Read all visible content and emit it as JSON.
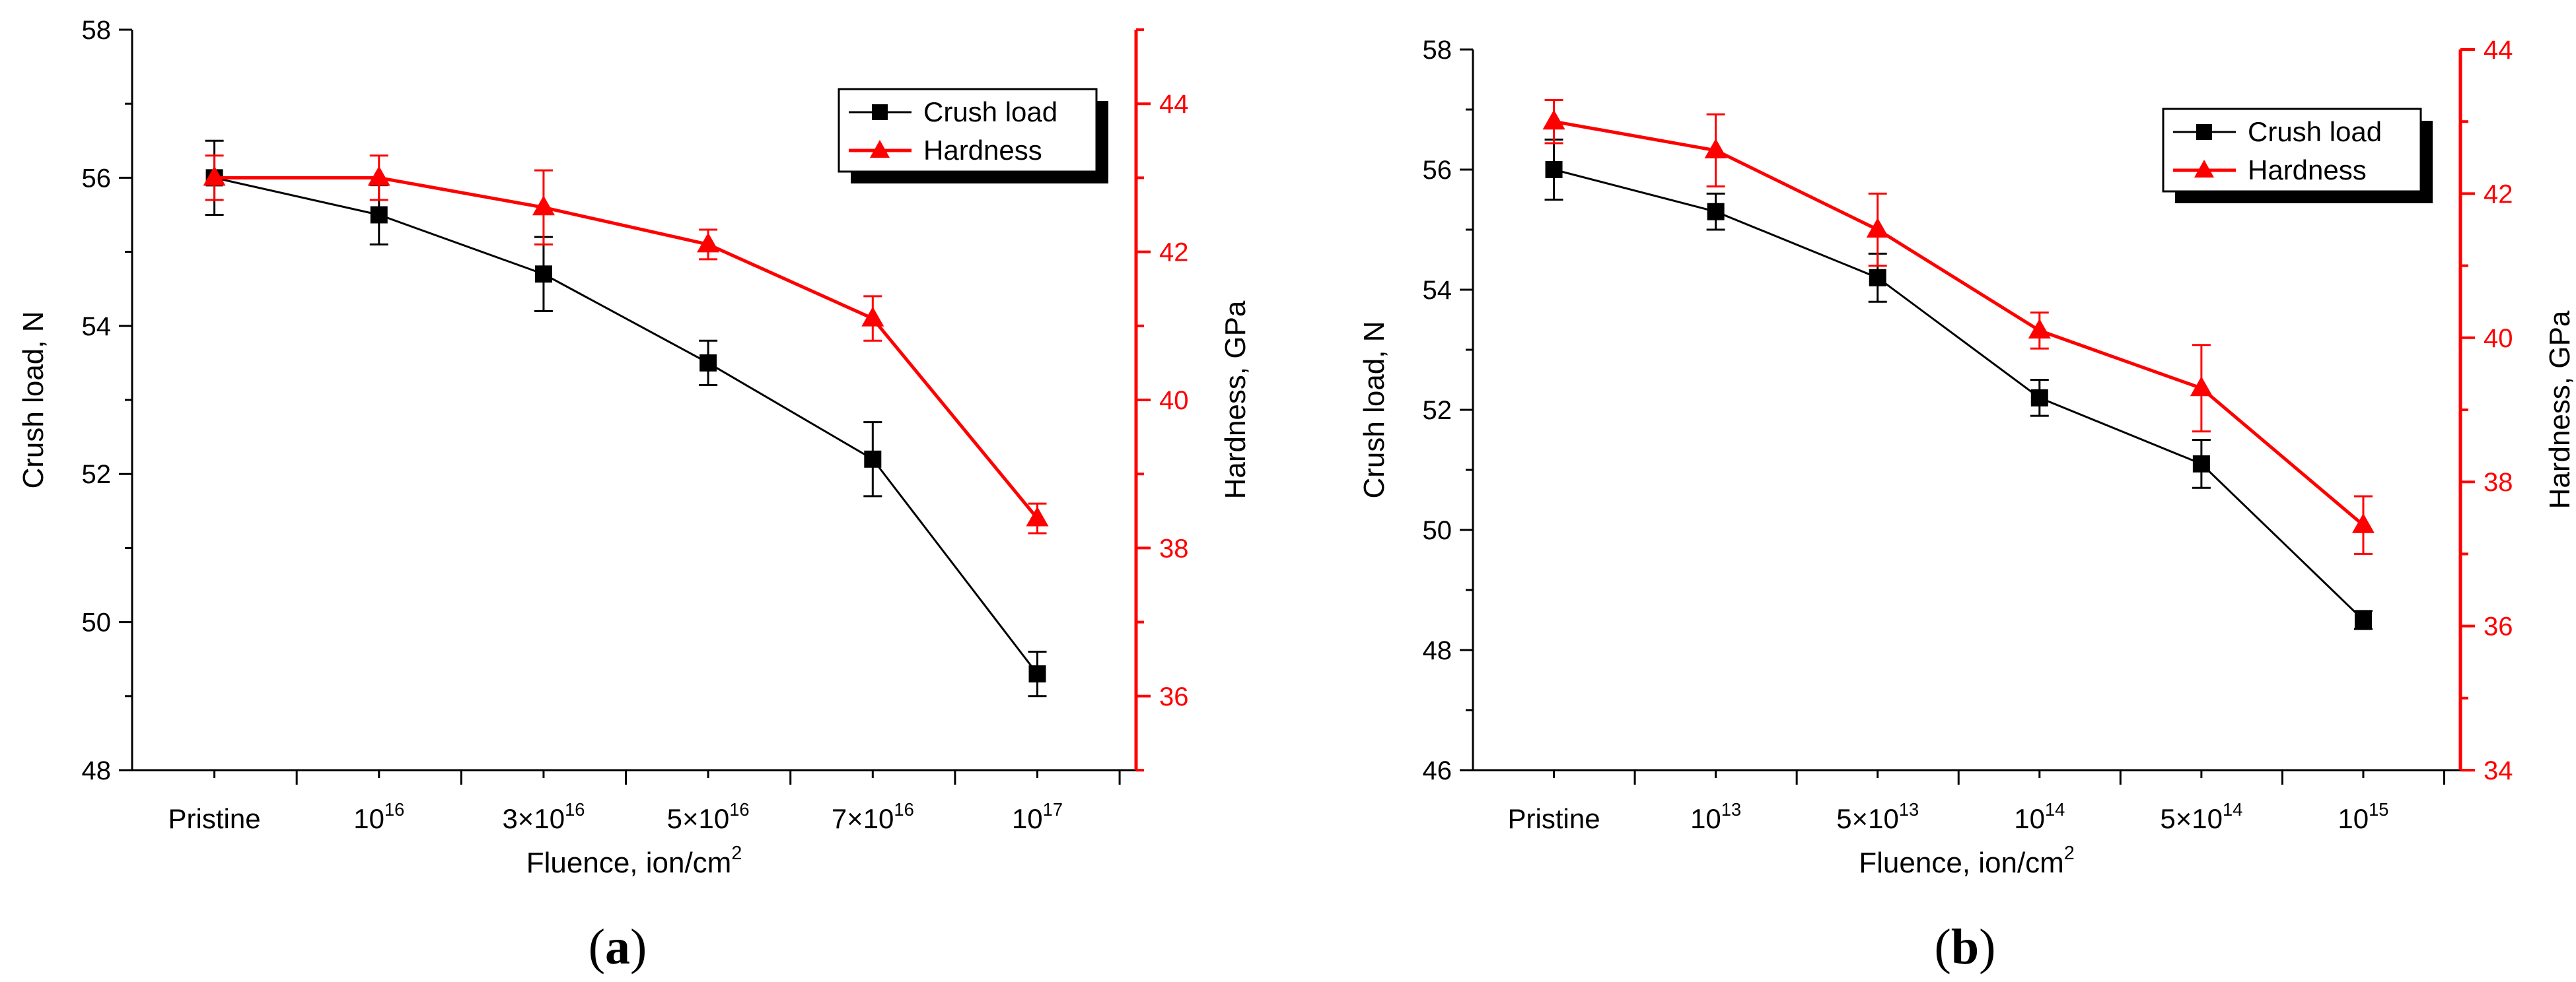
{
  "colors": {
    "crush": "#000000",
    "hardness": "#ff0000",
    "axis": "#000000"
  },
  "chart_data": [
    {
      "type": "line",
      "panel_label": "(a)",
      "categories": [
        "Pristine",
        "10^16",
        "3×10^16",
        "5×10^16",
        "7×10^16",
        "10^17"
      ],
      "xlabel": "Fluence, ion/cm^2",
      "ylabel": "Crush load, N",
      "y2label": "Hardness, GPa",
      "ylim": [
        48,
        58
      ],
      "yticks": [
        48,
        50,
        52,
        54,
        56,
        58
      ],
      "y2lim": [
        35,
        45
      ],
      "y2ticks": [
        36,
        38,
        40,
        42,
        44
      ],
      "legend_position": "top-right",
      "series": [
        {
          "name": "Crush load",
          "axis": "left",
          "marker": "square",
          "values": [
            56.0,
            55.5,
            54.7,
            53.5,
            52.2,
            49.3
          ],
          "errors": [
            0.5,
            0.4,
            0.5,
            0.3,
            0.5,
            0.3
          ]
        },
        {
          "name": "Hardness",
          "axis": "right",
          "marker": "triangle",
          "values": [
            43.0,
            43.0,
            42.6,
            42.1,
            41.1,
            38.4
          ],
          "errors": [
            0.3,
            0.3,
            0.5,
            0.2,
            0.3,
            0.2
          ]
        }
      ]
    },
    {
      "type": "line",
      "panel_label": "(b)",
      "categories": [
        "Pristine",
        "10^13",
        "5×10^13",
        "10^14",
        "5×10^14",
        "10^15"
      ],
      "xlabel": "Fluence, ion/cm^2",
      "ylabel": "Crush load, N",
      "y2label": "Hardness, GPa",
      "ylim": [
        46,
        58
      ],
      "yticks": [
        46,
        48,
        50,
        52,
        54,
        56,
        58
      ],
      "y2lim": [
        34,
        44
      ],
      "y2ticks": [
        34,
        36,
        38,
        40,
        42,
        44
      ],
      "legend_position": "top-right",
      "series": [
        {
          "name": "Crush load",
          "axis": "left",
          "marker": "square",
          "values": [
            56.0,
            55.3,
            54.2,
            52.2,
            51.1,
            48.5
          ],
          "errors": [
            0.5,
            0.3,
            0.4,
            0.3,
            0.4,
            0.15
          ]
        },
        {
          "name": "Hardness",
          "axis": "right",
          "marker": "triangle",
          "values": [
            43.0,
            42.6,
            41.5,
            40.1,
            39.3,
            37.4
          ],
          "errors": [
            0.3,
            0.5,
            0.5,
            0.25,
            0.6,
            0.4
          ]
        }
      ]
    }
  ]
}
